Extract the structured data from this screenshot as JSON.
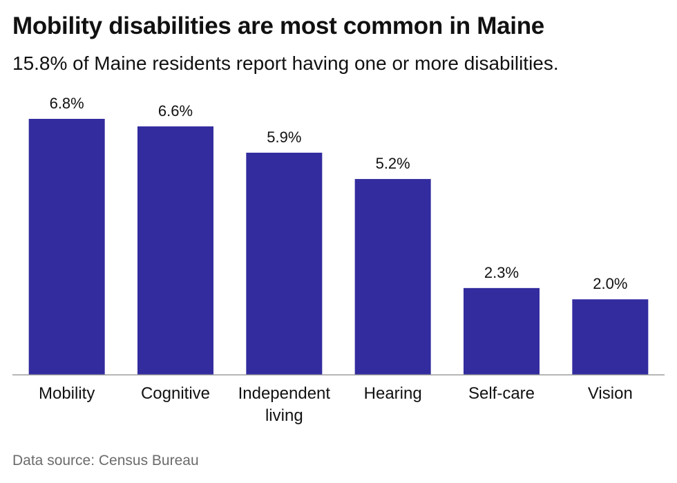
{
  "header": {
    "title": "Mobility disabilities are most common in Maine",
    "subtitle": "15.8% of Maine residents report having one or more disabilities."
  },
  "footer": {
    "source": "Data source: Census Bureau"
  },
  "colors": {
    "bar": "#332c9f",
    "baseline": "#9a9a9a",
    "text": "#111111"
  },
  "chart_data": {
    "type": "bar",
    "categories": [
      "Mobility",
      "Cognitive",
      "Independent living",
      "Hearing",
      "Self-care",
      "Vision"
    ],
    "category_lines": [
      [
        "Mobility"
      ],
      [
        "Cognitive"
      ],
      [
        "Independent",
        "living"
      ],
      [
        "Hearing"
      ],
      [
        "Self-care"
      ],
      [
        "Vision"
      ]
    ],
    "values": [
      6.8,
      6.6,
      5.9,
      5.2,
      2.3,
      2.0
    ],
    "data_labels": [
      "6.8%",
      "6.6%",
      "5.9%",
      "5.2%",
      "2.3%",
      "2.0%"
    ],
    "title": "Mobility disabilities are most common in Maine",
    "subtitle": "15.8% of Maine residents report having one or more disabilities.",
    "xlabel": "",
    "ylabel": "",
    "unit": "%",
    "ylim": [
      0,
      6.8
    ],
    "grid": false,
    "legend": "none"
  }
}
